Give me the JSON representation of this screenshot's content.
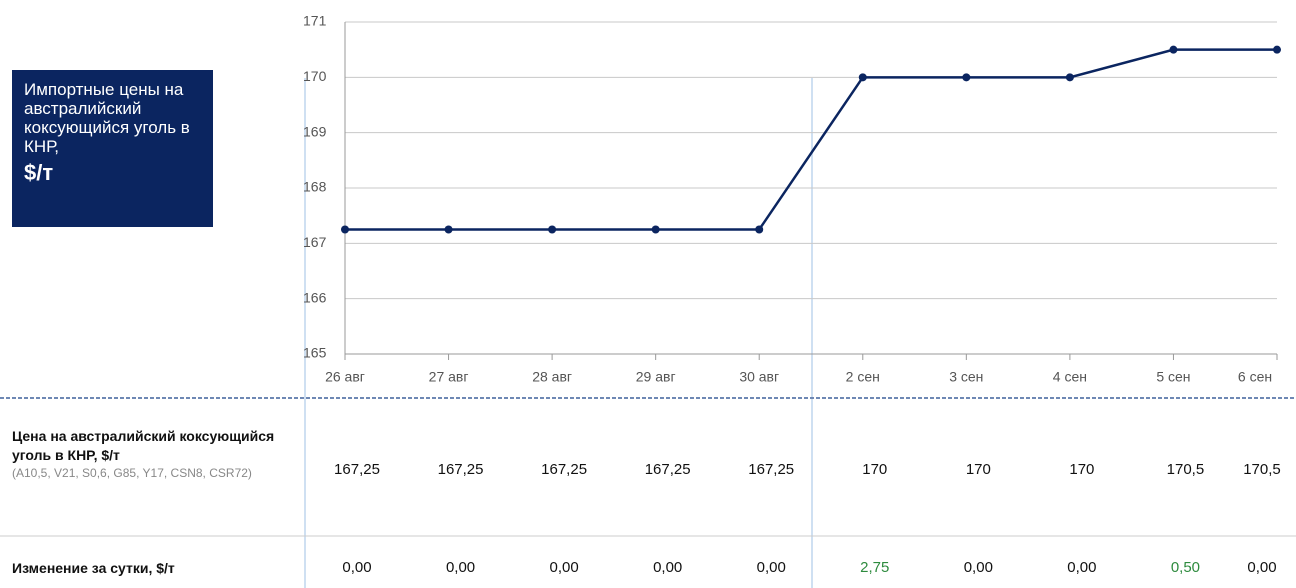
{
  "chart_data": {
    "type": "line",
    "title": "Импортные цены на австралийский коксующийся уголь в КНР,",
    "unit": "$/т",
    "categories": [
      "26 авг",
      "27 авг",
      "28 авг",
      "29 авг",
      "30 авг",
      "2 сен",
      "3 сен",
      "4 сен",
      "5 сен",
      "6 сен"
    ],
    "values": [
      167.25,
      167.25,
      167.25,
      167.25,
      167.25,
      170,
      170,
      170,
      170.5,
      170.5
    ],
    "color": "#0b2560",
    "ylim": [
      165,
      171
    ],
    "yticks": [
      165,
      166,
      167,
      168,
      169,
      170,
      171
    ],
    "grid": true
  },
  "table": {
    "rows": [
      {
        "label": "Цена на австралийский коксующийся уголь в КНР, $/т",
        "sublabel": "(A10,5, V21, S0,6, G85, Y17, CSN8, CSR72)",
        "cells": [
          "167,25",
          "167,25",
          "167,25",
          "167,25",
          "167,25",
          "170",
          "170",
          "170",
          "170,5",
          "170,5"
        ]
      },
      {
        "label": "Изменение  за сутки, $/т",
        "cells": [
          "0,00",
          "0,00",
          "0,00",
          "0,00",
          "0,00",
          "2,75",
          "0,00",
          "0,00",
          "0,50",
          "0,00"
        ]
      }
    ],
    "positive_color": "#2e8b3e"
  }
}
